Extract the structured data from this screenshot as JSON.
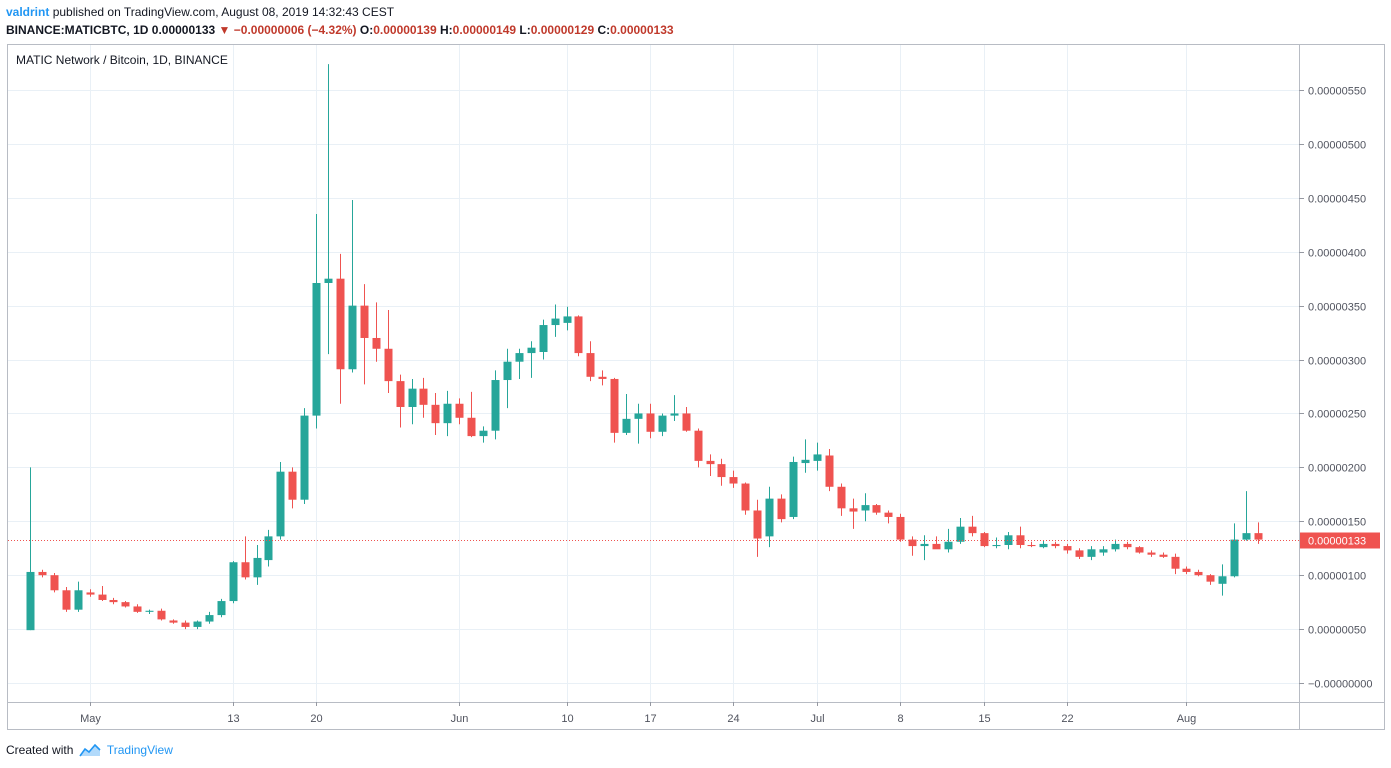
{
  "header": {
    "author": "valdrint",
    "published_text": "published on TradingView.com, August 08, 2019 14:32:43 CEST",
    "symbol_line": "BINANCE:MATICBTC, 1D",
    "last_price": "0.00000133",
    "change": "−0.00000006 (−4.32%)",
    "o_label": "O:",
    "o_value": "0.00000139",
    "h_label": "H:",
    "h_value": "0.00000149",
    "l_label": "L:",
    "l_value": "0.00000129",
    "c_label": "C:",
    "c_value": "0.00000133"
  },
  "footer": {
    "created_with": "Created with",
    "brand": "TradingView"
  },
  "colors": {
    "up": "#26a69a",
    "down": "#ef5350",
    "grid": "#e9f0f6",
    "axis_text": "#50535e",
    "price_line": "#ef5350",
    "brand": "#2196f3"
  },
  "chart_data": {
    "type": "candlestick",
    "title": "MATIC Network / Bitcoin, 1D, BINANCE",
    "symbol": "BINANCE:MATICBTC",
    "interval": "1D",
    "ylim": [
      -2e-07,
      5.8e-06
    ],
    "y_ticks": [
      {
        "value": 5.5e-06,
        "label": "0.00000550"
      },
      {
        "value": 5e-06,
        "label": "0.00000500"
      },
      {
        "value": 4.5e-06,
        "label": "0.00000450"
      },
      {
        "value": 4e-06,
        "label": "0.00000400"
      },
      {
        "value": 3.5e-06,
        "label": "0.00000350"
      },
      {
        "value": 3e-06,
        "label": "0.00000300"
      },
      {
        "value": 2.5e-06,
        "label": "0.00000250"
      },
      {
        "value": 2e-06,
        "label": "0.00000200"
      },
      {
        "value": 1.5e-06,
        "label": "0.00000150"
      },
      {
        "value": 1e-06,
        "label": "0.00000100"
      },
      {
        "value": 5e-07,
        "label": "0.00000050"
      },
      {
        "value": 0.0,
        "label": "−0.00000000"
      }
    ],
    "x_ticks": [
      {
        "date": "2019-05-01",
        "label": "May"
      },
      {
        "date": "2019-05-13",
        "label": "13"
      },
      {
        "date": "2019-05-20",
        "label": "20"
      },
      {
        "date": "2019-06-01",
        "label": "Jun"
      },
      {
        "date": "2019-06-10",
        "label": "10"
      },
      {
        "date": "2019-06-17",
        "label": "17"
      },
      {
        "date": "2019-06-24",
        "label": "24"
      },
      {
        "date": "2019-07-01",
        "label": "Jul"
      },
      {
        "date": "2019-07-08",
        "label": "8"
      },
      {
        "date": "2019-07-15",
        "label": "15"
      },
      {
        "date": "2019-07-22",
        "label": "22"
      },
      {
        "date": "2019-08-01",
        "label": "Aug"
      }
    ],
    "current_price": {
      "value": 1.33e-06,
      "label": "0.00000133"
    },
    "candles": [
      {
        "date": "2019-04-26",
        "o": 4.9e-07,
        "h": 2e-06,
        "l": 4.9e-07,
        "c": 1.03e-06
      },
      {
        "date": "2019-04-27",
        "o": 1.03e-06,
        "h": 1.05e-06,
        "l": 9.8e-07,
        "c": 1e-06
      },
      {
        "date": "2019-04-28",
        "o": 1e-06,
        "h": 1.02e-06,
        "l": 8.4e-07,
        "c": 8.6e-07
      },
      {
        "date": "2019-04-29",
        "o": 8.6e-07,
        "h": 8.9e-07,
        "l": 6.6e-07,
        "c": 6.8e-07
      },
      {
        "date": "2019-04-30",
        "o": 6.8e-07,
        "h": 9.4e-07,
        "l": 6.6e-07,
        "c": 8.6e-07
      },
      {
        "date": "2019-05-01",
        "o": 8.4e-07,
        "h": 8.7e-07,
        "l": 8e-07,
        "c": 8.2e-07
      },
      {
        "date": "2019-05-02",
        "o": 8.2e-07,
        "h": 9e-07,
        "l": 7.6e-07,
        "c": 7.7e-07
      },
      {
        "date": "2019-05-03",
        "o": 7.7e-07,
        "h": 7.9e-07,
        "l": 7.3e-07,
        "c": 7.5e-07
      },
      {
        "date": "2019-05-04",
        "o": 7.5e-07,
        "h": 7.6e-07,
        "l": 7e-07,
        "c": 7.1e-07
      },
      {
        "date": "2019-05-05",
        "o": 7.1e-07,
        "h": 7.3e-07,
        "l": 6.5e-07,
        "c": 6.6e-07
      },
      {
        "date": "2019-05-06",
        "o": 6.6e-07,
        "h": 6.8e-07,
        "l": 6.4e-07,
        "c": 6.7e-07
      },
      {
        "date": "2019-05-07",
        "o": 6.7e-07,
        "h": 6.9e-07,
        "l": 5.8e-07,
        "c": 5.9e-07
      },
      {
        "date": "2019-05-08",
        "o": 5.8e-07,
        "h": 5.9e-07,
        "l": 5.5e-07,
        "c": 5.6e-07
      },
      {
        "date": "2019-05-09",
        "o": 5.6e-07,
        "h": 5.8e-07,
        "l": 5e-07,
        "c": 5.2e-07
      },
      {
        "date": "2019-05-10",
        "o": 5.2e-07,
        "h": 5.8e-07,
        "l": 5e-07,
        "c": 5.7e-07
      },
      {
        "date": "2019-05-11",
        "o": 5.7e-07,
        "h": 6.6e-07,
        "l": 5.5e-07,
        "c": 6.3e-07
      },
      {
        "date": "2019-05-12",
        "o": 6.3e-07,
        "h": 7.8e-07,
        "l": 6.1e-07,
        "c": 7.6e-07
      },
      {
        "date": "2019-05-13",
        "o": 7.6e-07,
        "h": 1.13e-06,
        "l": 7.4e-07,
        "c": 1.12e-06
      },
      {
        "date": "2019-05-14",
        "o": 1.12e-06,
        "h": 1.36e-06,
        "l": 9.6e-07,
        "c": 9.8e-07
      },
      {
        "date": "2019-05-15",
        "o": 9.8e-07,
        "h": 1.28e-06,
        "l": 9.1e-07,
        "c": 1.16e-06
      },
      {
        "date": "2019-05-16",
        "o": 1.14e-06,
        "h": 1.42e-06,
        "l": 1.08e-06,
        "c": 1.36e-06
      },
      {
        "date": "2019-05-17",
        "o": 1.36e-06,
        "h": 2.05e-06,
        "l": 1.33e-06,
        "c": 1.96e-06
      },
      {
        "date": "2019-05-18",
        "o": 1.96e-06,
        "h": 2e-06,
        "l": 1.62e-06,
        "c": 1.7e-06
      },
      {
        "date": "2019-05-19",
        "o": 1.7e-06,
        "h": 2.55e-06,
        "l": 1.66e-06,
        "c": 2.48e-06
      },
      {
        "date": "2019-05-20",
        "o": 2.48e-06,
        "h": 4.35e-06,
        "l": 2.36e-06,
        "c": 3.71e-06
      },
      {
        "date": "2019-05-21",
        "o": 3.71e-06,
        "h": 5.74e-06,
        "l": 3.05e-06,
        "c": 3.75e-06
      },
      {
        "date": "2019-05-22",
        "o": 3.75e-06,
        "h": 3.98e-06,
        "l": 2.59e-06,
        "c": 2.91e-06
      },
      {
        "date": "2019-05-23",
        "o": 2.91e-06,
        "h": 4.48e-06,
        "l": 2.88e-06,
        "c": 3.5e-06
      },
      {
        "date": "2019-05-24",
        "o": 3.5e-06,
        "h": 3.7e-06,
        "l": 2.77e-06,
        "c": 3.2e-06
      },
      {
        "date": "2019-05-25",
        "o": 3.2e-06,
        "h": 3.53e-06,
        "l": 2.98e-06,
        "c": 3.1e-06
      },
      {
        "date": "2019-05-26",
        "o": 3.1e-06,
        "h": 3.46e-06,
        "l": 2.69e-06,
        "c": 2.8e-06
      },
      {
        "date": "2019-05-27",
        "o": 2.8e-06,
        "h": 2.86e-06,
        "l": 2.37e-06,
        "c": 2.56e-06
      },
      {
        "date": "2019-05-28",
        "o": 2.56e-06,
        "h": 2.82e-06,
        "l": 2.4e-06,
        "c": 2.73e-06
      },
      {
        "date": "2019-05-29",
        "o": 2.73e-06,
        "h": 2.83e-06,
        "l": 2.46e-06,
        "c": 2.58e-06
      },
      {
        "date": "2019-05-30",
        "o": 2.58e-06,
        "h": 2.69e-06,
        "l": 2.3e-06,
        "c": 2.41e-06
      },
      {
        "date": "2019-05-31",
        "o": 2.41e-06,
        "h": 2.71e-06,
        "l": 2.29e-06,
        "c": 2.59e-06
      },
      {
        "date": "2019-06-01",
        "o": 2.59e-06,
        "h": 2.64e-06,
        "l": 2.4e-06,
        "c": 2.46e-06
      },
      {
        "date": "2019-06-02",
        "o": 2.46e-06,
        "h": 2.7e-06,
        "l": 2.28e-06,
        "c": 2.29e-06
      },
      {
        "date": "2019-06-03",
        "o": 2.29e-06,
        "h": 2.38e-06,
        "l": 2.23e-06,
        "c": 2.34e-06
      },
      {
        "date": "2019-06-04",
        "o": 2.34e-06,
        "h": 2.9e-06,
        "l": 2.26e-06,
        "c": 2.81e-06
      },
      {
        "date": "2019-06-05",
        "o": 2.81e-06,
        "h": 3.1e-06,
        "l": 2.55e-06,
        "c": 2.98e-06
      },
      {
        "date": "2019-06-06",
        "o": 2.98e-06,
        "h": 3.1e-06,
        "l": 2.82e-06,
        "c": 3.06e-06
      },
      {
        "date": "2019-06-07",
        "o": 3.06e-06,
        "h": 3.17e-06,
        "l": 2.83e-06,
        "c": 3.11e-06
      },
      {
        "date": "2019-06-08",
        "o": 3.07e-06,
        "h": 3.37e-06,
        "l": 3e-06,
        "c": 3.32e-06
      },
      {
        "date": "2019-06-09",
        "o": 3.32e-06,
        "h": 3.51e-06,
        "l": 3.21e-06,
        "c": 3.38e-06
      },
      {
        "date": "2019-06-10",
        "o": 3.34e-06,
        "h": 3.49e-06,
        "l": 3.27e-06,
        "c": 3.4e-06
      },
      {
        "date": "2019-06-11",
        "o": 3.4e-06,
        "h": 3.41e-06,
        "l": 3.03e-06,
        "c": 3.06e-06
      },
      {
        "date": "2019-06-12",
        "o": 3.06e-06,
        "h": 3.17e-06,
        "l": 2.8e-06,
        "c": 2.84e-06
      },
      {
        "date": "2019-06-13",
        "o": 2.84e-06,
        "h": 2.9e-06,
        "l": 2.76e-06,
        "c": 2.82e-06
      },
      {
        "date": "2019-06-14",
        "o": 2.82e-06,
        "h": 2.83e-06,
        "l": 2.23e-06,
        "c": 2.32e-06
      },
      {
        "date": "2019-06-15",
        "o": 2.32e-06,
        "h": 2.68e-06,
        "l": 2.3e-06,
        "c": 2.45e-06
      },
      {
        "date": "2019-06-16",
        "o": 2.45e-06,
        "h": 2.59e-06,
        "l": 2.22e-06,
        "c": 2.5e-06
      },
      {
        "date": "2019-06-17",
        "o": 2.5e-06,
        "h": 2.59e-06,
        "l": 2.27e-06,
        "c": 2.33e-06
      },
      {
        "date": "2019-06-18",
        "o": 2.33e-06,
        "h": 2.5e-06,
        "l": 2.29e-06,
        "c": 2.48e-06
      },
      {
        "date": "2019-06-19",
        "o": 2.48e-06,
        "h": 2.67e-06,
        "l": 2.43e-06,
        "c": 2.5e-06
      },
      {
        "date": "2019-06-20",
        "o": 2.5e-06,
        "h": 2.56e-06,
        "l": 2.33e-06,
        "c": 2.34e-06
      },
      {
        "date": "2019-06-21",
        "o": 2.34e-06,
        "h": 2.36e-06,
        "l": 2e-06,
        "c": 2.06e-06
      },
      {
        "date": "2019-06-22",
        "o": 2.06e-06,
        "h": 2.12e-06,
        "l": 1.92e-06,
        "c": 2.03e-06
      },
      {
        "date": "2019-06-23",
        "o": 2.03e-06,
        "h": 2.08e-06,
        "l": 1.83e-06,
        "c": 1.91e-06
      },
      {
        "date": "2019-06-24",
        "o": 1.91e-06,
        "h": 1.97e-06,
        "l": 1.81e-06,
        "c": 1.85e-06
      },
      {
        "date": "2019-06-25",
        "o": 1.85e-06,
        "h": 1.86e-06,
        "l": 1.56e-06,
        "c": 1.6e-06
      },
      {
        "date": "2019-06-26",
        "o": 1.6e-06,
        "h": 1.7e-06,
        "l": 1.17e-06,
        "c": 1.34e-06
      },
      {
        "date": "2019-06-27",
        "o": 1.36e-06,
        "h": 1.82e-06,
        "l": 1.26e-06,
        "c": 1.71e-06
      },
      {
        "date": "2019-06-28",
        "o": 1.71e-06,
        "h": 1.75e-06,
        "l": 1.49e-06,
        "c": 1.52e-06
      },
      {
        "date": "2019-06-29",
        "o": 1.54e-06,
        "h": 2.1e-06,
        "l": 1.52e-06,
        "c": 2.05e-06
      },
      {
        "date": "2019-06-30",
        "o": 2.04e-06,
        "h": 2.26e-06,
        "l": 1.95e-06,
        "c": 2.07e-06
      },
      {
        "date": "2019-07-01",
        "o": 2.06e-06,
        "h": 2.23e-06,
        "l": 1.97e-06,
        "c": 2.12e-06
      },
      {
        "date": "2019-07-02",
        "o": 2.11e-06,
        "h": 2.17e-06,
        "l": 1.78e-06,
        "c": 1.82e-06
      },
      {
        "date": "2019-07-03",
        "o": 1.82e-06,
        "h": 1.85e-06,
        "l": 1.55e-06,
        "c": 1.62e-06
      },
      {
        "date": "2019-07-04",
        "o": 1.62e-06,
        "h": 1.71e-06,
        "l": 1.43e-06,
        "c": 1.59e-06
      },
      {
        "date": "2019-07-05",
        "o": 1.6e-06,
        "h": 1.76e-06,
        "l": 1.5e-06,
        "c": 1.65e-06
      },
      {
        "date": "2019-07-06",
        "o": 1.65e-06,
        "h": 1.66e-06,
        "l": 1.56e-06,
        "c": 1.58e-06
      },
      {
        "date": "2019-07-07",
        "o": 1.58e-06,
        "h": 1.6e-06,
        "l": 1.48e-06,
        "c": 1.54e-06
      },
      {
        "date": "2019-07-08",
        "o": 1.54e-06,
        "h": 1.57e-06,
        "l": 1.31e-06,
        "c": 1.33e-06
      },
      {
        "date": "2019-07-09",
        "o": 1.33e-06,
        "h": 1.36e-06,
        "l": 1.18e-06,
        "c": 1.27e-06
      },
      {
        "date": "2019-07-10",
        "o": 1.27e-06,
        "h": 1.37e-06,
        "l": 1.14e-06,
        "c": 1.29e-06
      },
      {
        "date": "2019-07-11",
        "o": 1.29e-06,
        "h": 1.36e-06,
        "l": 1.25e-06,
        "c": 1.24e-06
      },
      {
        "date": "2019-07-12",
        "o": 1.24e-06,
        "h": 1.43e-06,
        "l": 1.21e-06,
        "c": 1.31e-06
      },
      {
        "date": "2019-07-13",
        "o": 1.31e-06,
        "h": 1.53e-06,
        "l": 1.29e-06,
        "c": 1.45e-06
      },
      {
        "date": "2019-07-14",
        "o": 1.45e-06,
        "h": 1.55e-06,
        "l": 1.36e-06,
        "c": 1.39e-06
      },
      {
        "date": "2019-07-15",
        "o": 1.39e-06,
        "h": 1.4e-06,
        "l": 1.26e-06,
        "c": 1.27e-06
      },
      {
        "date": "2019-07-16",
        "o": 1.27e-06,
        "h": 1.35e-06,
        "l": 1.25e-06,
        "c": 1.28e-06
      },
      {
        "date": "2019-07-17",
        "o": 1.28e-06,
        "h": 1.4e-06,
        "l": 1.24e-06,
        "c": 1.37e-06
      },
      {
        "date": "2019-07-18",
        "o": 1.37e-06,
        "h": 1.45e-06,
        "l": 1.25e-06,
        "c": 1.28e-06
      },
      {
        "date": "2019-07-19",
        "o": 1.28e-06,
        "h": 1.31e-06,
        "l": 1.26e-06,
        "c": 1.27e-06
      },
      {
        "date": "2019-07-20",
        "o": 1.26e-06,
        "h": 1.32e-06,
        "l": 1.25e-06,
        "c": 1.29e-06
      },
      {
        "date": "2019-07-21",
        "o": 1.29e-06,
        "h": 1.31e-06,
        "l": 1.25e-06,
        "c": 1.27e-06
      },
      {
        "date": "2019-07-22",
        "o": 1.27e-06,
        "h": 1.29e-06,
        "l": 1.2e-06,
        "c": 1.23e-06
      },
      {
        "date": "2019-07-23",
        "o": 1.23e-06,
        "h": 1.25e-06,
        "l": 1.15e-06,
        "c": 1.17e-06
      },
      {
        "date": "2019-07-24",
        "o": 1.17e-06,
        "h": 1.27e-06,
        "l": 1.14e-06,
        "c": 1.24e-06
      },
      {
        "date": "2019-07-25",
        "o": 1.21e-06,
        "h": 1.27e-06,
        "l": 1.18e-06,
        "c": 1.24e-06
      },
      {
        "date": "2019-07-26",
        "o": 1.24e-06,
        "h": 1.33e-06,
        "l": 1.22e-06,
        "c": 1.29e-06
      },
      {
        "date": "2019-07-27",
        "o": 1.29e-06,
        "h": 1.31e-06,
        "l": 1.24e-06,
        "c": 1.26e-06
      },
      {
        "date": "2019-07-28",
        "o": 1.26e-06,
        "h": 1.27e-06,
        "l": 1.2e-06,
        "c": 1.21e-06
      },
      {
        "date": "2019-07-29",
        "o": 1.21e-06,
        "h": 1.23e-06,
        "l": 1.17e-06,
        "c": 1.19e-06
      },
      {
        "date": "2019-07-30",
        "o": 1.19e-06,
        "h": 1.21e-06,
        "l": 1.16e-06,
        "c": 1.17e-06
      },
      {
        "date": "2019-07-31",
        "o": 1.17e-06,
        "h": 1.2e-06,
        "l": 1.01e-06,
        "c": 1.06e-06
      },
      {
        "date": "2019-08-01",
        "o": 1.06e-06,
        "h": 1.08e-06,
        "l": 1.01e-06,
        "c": 1.03e-06
      },
      {
        "date": "2019-08-02",
        "o": 1.03e-06,
        "h": 1.05e-06,
        "l": 9.9e-07,
        "c": 1e-06
      },
      {
        "date": "2019-08-03",
        "o": 1e-06,
        "h": 1.01e-06,
        "l": 9.1e-07,
        "c": 9.4e-07
      },
      {
        "date": "2019-08-04",
        "o": 9.2e-07,
        "h": 1.1e-06,
        "l": 8.1e-07,
        "c": 9.9e-07
      },
      {
        "date": "2019-08-05",
        "o": 9.9e-07,
        "h": 1.48e-06,
        "l": 9.8e-07,
        "c": 1.33e-06
      },
      {
        "date": "2019-08-06",
        "o": 1.33e-06,
        "h": 1.78e-06,
        "l": 1.32e-06,
        "c": 1.39e-06
      },
      {
        "date": "2019-08-07",
        "o": 1.39e-06,
        "h": 1.49e-06,
        "l": 1.29e-06,
        "c": 1.33e-06
      }
    ]
  }
}
